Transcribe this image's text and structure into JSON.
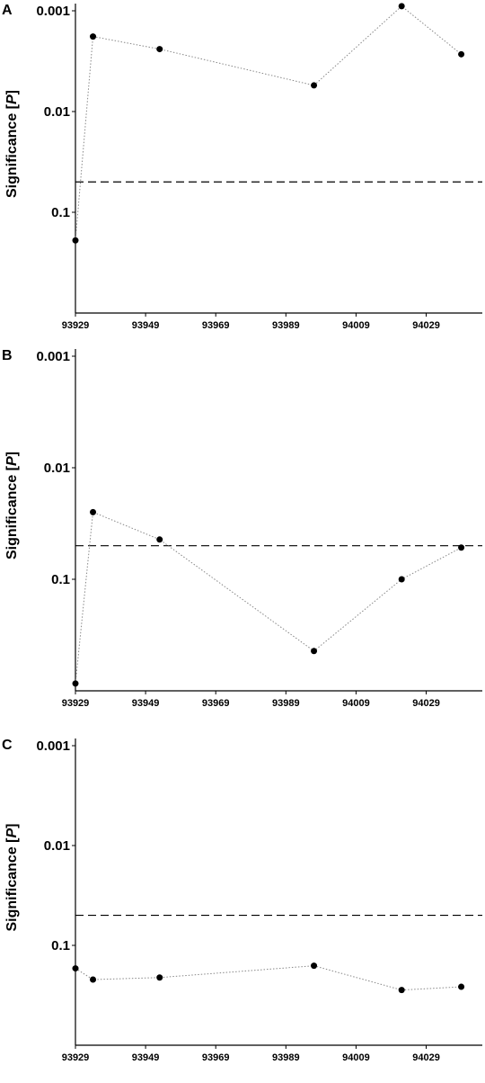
{
  "chart_data": [
    {
      "type": "line",
      "label": "A",
      "ylabel_parts": [
        "Significance [",
        "P",
        "]"
      ],
      "x": [
        93929,
        93934,
        93953,
        93997,
        94022,
        94039
      ],
      "values": [
        0.19,
        0.0018,
        0.0024,
        0.0055,
        0.0009,
        0.0027
      ],
      "color": "#000000",
      "line_color": "#888888",
      "xlim": [
        93929,
        94045
      ],
      "xticks": [
        93929,
        93949,
        93969,
        93989,
        94009,
        94029
      ],
      "ylim": [
        1,
        0.001
      ],
      "yticks": [
        0.001,
        0.01,
        0.1
      ],
      "log_y": true,
      "hline": 0.05
    },
    {
      "type": "line",
      "label": "B",
      "ylabel_parts": [
        "Significance [",
        "P",
        "]"
      ],
      "x": [
        93929,
        93934,
        93953,
        93997,
        94022,
        94039
      ],
      "values": [
        0.86,
        0.025,
        0.044,
        0.44,
        0.1,
        0.052
      ],
      "color": "#000000",
      "line_color": "#888888",
      "xlim": [
        93929,
        94045
      ],
      "xticks": [
        93929,
        93949,
        93969,
        93989,
        94009,
        94029
      ],
      "ylim": [
        1,
        0.001
      ],
      "yticks": [
        0.001,
        0.01,
        0.1
      ],
      "log_y": true,
      "hline": 0.05
    },
    {
      "type": "line",
      "label": "C",
      "ylabel_parts": [
        "Significance [",
        "P",
        "]"
      ],
      "x": [
        93929,
        93934,
        93953,
        93997,
        94022,
        94039
      ],
      "values": [
        0.17,
        0.22,
        0.21,
        0.16,
        0.28,
        0.26
      ],
      "color": "#000000",
      "line_color": "#888888",
      "xlim": [
        93929,
        94045
      ],
      "xticks": [
        93929,
        93949,
        93969,
        93989,
        94009,
        94029
      ],
      "ylim": [
        1,
        0.001
      ],
      "yticks": [
        0.001,
        0.01,
        0.1
      ],
      "log_y": true,
      "hline": 0.05
    }
  ]
}
